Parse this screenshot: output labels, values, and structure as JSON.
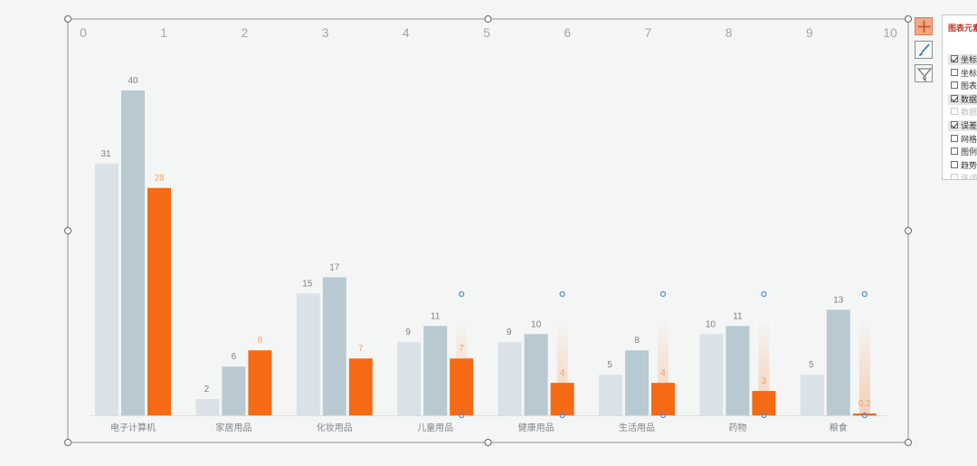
{
  "chart_data": {
    "type": "bar",
    "categories": [
      "电子计算机",
      "家居用品",
      "化妆用品",
      "儿童用品",
      "健康用品",
      "生活用品",
      "药物",
      "粮食"
    ],
    "series": [
      {
        "values": [
          31,
          2,
          15,
          9,
          9,
          5,
          10,
          5
        ],
        "color": "#dae2e8",
        "label_color": "#7a7f83"
      },
      {
        "values": [
          40,
          6,
          17,
          11,
          10,
          8,
          11,
          13
        ],
        "color": "#b9c9d2",
        "label_color": "#7a7f83"
      },
      {
        "values": [
          28,
          8,
          7,
          7,
          4,
          4,
          3,
          0.2
        ],
        "color": "#f56a15",
        "label_color": "#f4a15a"
      }
    ],
    "top_axis_ticks": [
      "0",
      "1",
      "2",
      "3",
      "4",
      "5",
      "6",
      "7",
      "8",
      "9",
      "10"
    ],
    "ylim": [
      0,
      40
    ]
  },
  "colors": {
    "background": "#f4f6f5",
    "frame": "#8e9397",
    "handle_fill": "#ffffff",
    "selection_marker": "#4d8fd6",
    "accent": "#f56a15"
  },
  "side_tools": [
    {
      "icon": "plus-icon"
    },
    {
      "icon": "brush-icon"
    },
    {
      "icon": "filter-icon"
    }
  ],
  "panel": {
    "title": "图表元素",
    "items": [
      {
        "label": "坐标轴",
        "checked": true,
        "disabled": false,
        "highlight": true
      },
      {
        "label": "坐标轴标题",
        "checked": false,
        "disabled": false,
        "highlight": false
      },
      {
        "label": "图表标题",
        "checked": false,
        "disabled": false,
        "highlight": false
      },
      {
        "label": "数据标签",
        "checked": true,
        "disabled": false,
        "highlight": true
      },
      {
        "label": "数据表",
        "checked": false,
        "disabled": true,
        "highlight": false
      },
      {
        "label": "误差线",
        "checked": true,
        "disabled": false,
        "highlight": true
      },
      {
        "label": "网格线",
        "checked": false,
        "disabled": false,
        "highlight": false
      },
      {
        "label": "图例",
        "checked": false,
        "disabled": false,
        "highlight": false
      },
      {
        "label": "趋势线",
        "checked": false,
        "disabled": false,
        "highlight": false
      },
      {
        "label": "涨/跌柱线",
        "checked": false,
        "disabled": true,
        "highlight": false
      }
    ]
  }
}
